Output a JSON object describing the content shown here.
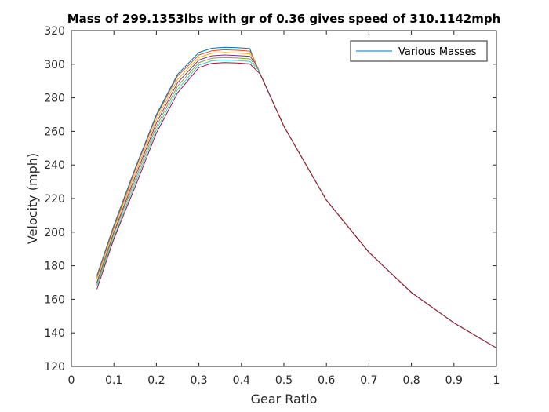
{
  "chart_data": {
    "type": "line",
    "title": "Mass of 299.1353lbs with gr of 0.36 gives speed of 310.1142mph",
    "xlabel": "Gear Ratio",
    "ylabel": "Velocity (mph)",
    "xlim": [
      0,
      1
    ],
    "ylim": [
      120,
      320
    ],
    "xticks": [
      0,
      0.1,
      0.2,
      0.3,
      0.4,
      0.5,
      0.6,
      0.7,
      0.8,
      0.9,
      1
    ],
    "xtick_labels": [
      "0",
      "0.1",
      "0.2",
      "0.3",
      "0.4",
      "0.5",
      "0.6",
      "0.7",
      "0.8",
      "0.9",
      "1"
    ],
    "yticks": [
      120,
      140,
      160,
      180,
      200,
      220,
      240,
      260,
      280,
      300,
      320
    ],
    "ytick_labels": [
      "120",
      "140",
      "160",
      "180",
      "200",
      "220",
      "240",
      "260",
      "280",
      "300",
      "320"
    ],
    "grid": false,
    "legend": {
      "position": "top-right",
      "entries": [
        "Various Masses"
      ]
    },
    "colors": [
      "#0072BD",
      "#D95319",
      "#EDB120",
      "#7E2F8E",
      "#77AC30",
      "#4DBEEE",
      "#A2142F"
    ],
    "series": [
      {
        "x": [
          0.06,
          0.1,
          0.15,
          0.2,
          0.25,
          0.3,
          0.33,
          0.36,
          0.39,
          0.42,
          0.426,
          0.45,
          0.5,
          0.6,
          0.7,
          0.8,
          0.9,
          1.0
        ],
        "values": [
          174,
          204,
          238,
          270,
          294,
          307,
          309.5,
          310.1,
          309.8,
          309.3,
          305,
          291,
          263,
          219,
          188,
          164,
          146,
          131
        ]
      },
      {
        "x": [
          0.06,
          0.1,
          0.15,
          0.2,
          0.25,
          0.3,
          0.33,
          0.36,
          0.39,
          0.42,
          0.428,
          0.45,
          0.5,
          0.6,
          0.7,
          0.8,
          0.9,
          1.0
        ],
        "values": [
          173,
          203,
          237,
          269,
          293,
          305.5,
          308,
          308.6,
          308.3,
          307.8,
          304,
          291,
          263,
          219,
          188,
          164,
          146,
          131
        ]
      },
      {
        "x": [
          0.06,
          0.1,
          0.15,
          0.2,
          0.25,
          0.3,
          0.33,
          0.36,
          0.39,
          0.42,
          0.43,
          0.45,
          0.5,
          0.6,
          0.7,
          0.8,
          0.9,
          1.0
        ],
        "values": [
          172,
          202,
          235,
          267,
          291,
          304,
          306.5,
          307,
          306.7,
          306.2,
          302.5,
          291,
          263,
          219,
          188,
          164,
          146,
          131
        ]
      },
      {
        "x": [
          0.06,
          0.1,
          0.15,
          0.2,
          0.25,
          0.3,
          0.33,
          0.36,
          0.39,
          0.42,
          0.433,
          0.45,
          0.5,
          0.6,
          0.7,
          0.8,
          0.9,
          1.0
        ],
        "values": [
          170,
          200,
          233,
          265,
          289,
          302.5,
          305,
          305.5,
          305.2,
          304.7,
          300.5,
          291,
          263,
          219,
          188,
          164,
          146,
          131
        ]
      },
      {
        "x": [
          0.06,
          0.1,
          0.15,
          0.2,
          0.25,
          0.3,
          0.33,
          0.36,
          0.39,
          0.42,
          0.436,
          0.45,
          0.5,
          0.6,
          0.7,
          0.8,
          0.9,
          1.0
        ],
        "values": [
          169,
          199,
          231,
          263,
          287,
          301,
          303.5,
          304,
          303.7,
          303.2,
          298.5,
          291,
          263,
          219,
          188,
          164,
          146,
          131
        ]
      },
      {
        "x": [
          0.06,
          0.1,
          0.15,
          0.2,
          0.25,
          0.3,
          0.33,
          0.36,
          0.39,
          0.42,
          0.44,
          0.45,
          0.5,
          0.6,
          0.7,
          0.8,
          0.9,
          1.0
        ],
        "values": [
          168,
          197,
          229,
          261,
          285,
          299.5,
          302,
          302.5,
          302.2,
          301.7,
          296.5,
          291,
          263,
          219,
          188,
          164,
          146,
          131
        ]
      },
      {
        "x": [
          0.06,
          0.1,
          0.15,
          0.2,
          0.25,
          0.3,
          0.33,
          0.36,
          0.39,
          0.42,
          0.443,
          0.45,
          0.5,
          0.6,
          0.7,
          0.8,
          0.9,
          1.0
        ],
        "values": [
          166,
          196,
          227,
          259,
          283,
          298,
          300.5,
          301,
          300.7,
          300.2,
          294.5,
          291,
          263,
          219,
          188,
          164,
          146,
          131
        ]
      }
    ]
  }
}
